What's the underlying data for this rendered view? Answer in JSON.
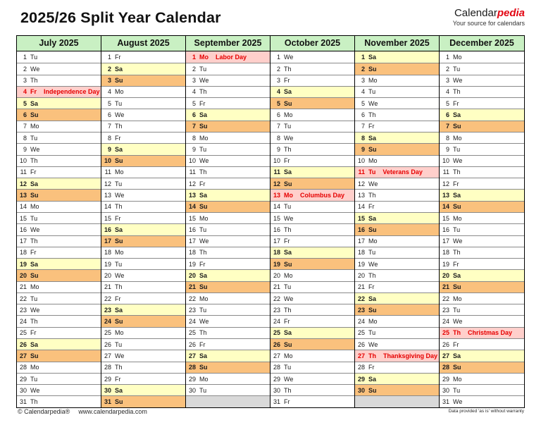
{
  "page": {
    "title": "2025/26 Split Year Calendar",
    "logo": {
      "part1": "Calendar",
      "part2": "pedia",
      "tagline": "Your source for calendars"
    },
    "footer": {
      "copyright": "© Calendarpedia®",
      "url": "www.calendarpedia.com",
      "disclaimer": "Data provided 'as is' without warranty"
    }
  },
  "colors": {
    "month-header-bg": "#c9f0c3",
    "saturday-bg": "#ffffc3",
    "sunday-bg": "#fac17d",
    "holiday-bg": "#ffcfcb",
    "holiday-text": "#e60000",
    "empty-bg": "#d9d9d9",
    "logo-red": "#e30613"
  },
  "layout": {
    "rows": 31
  },
  "months": [
    {
      "name": "July 2025",
      "weekdays": [
        "Tu",
        "We",
        "Th",
        "Fr",
        "Sa",
        "Su",
        "Mo",
        "Tu",
        "We",
        "Th",
        "Fr",
        "Sa",
        "Su",
        "Mo",
        "Tu",
        "We",
        "Th",
        "Fr",
        "Sa",
        "Su",
        "Mo",
        "Tu",
        "We",
        "Th",
        "Fr",
        "Sa",
        "Su",
        "Mo",
        "Tu",
        "We",
        "Th"
      ],
      "holidays": {
        "4": "Independence Day"
      }
    },
    {
      "name": "August 2025",
      "weekdays": [
        "Fr",
        "Sa",
        "Su",
        "Mo",
        "Tu",
        "We",
        "Th",
        "Fr",
        "Sa",
        "Su",
        "Mo",
        "Tu",
        "We",
        "Th",
        "Fr",
        "Sa",
        "Su",
        "Mo",
        "Tu",
        "We",
        "Th",
        "Fr",
        "Sa",
        "Su",
        "Mo",
        "Tu",
        "We",
        "Th",
        "Fr",
        "Sa",
        "Su"
      ],
      "holidays": {}
    },
    {
      "name": "September 2025",
      "weekdays": [
        "Mo",
        "Tu",
        "We",
        "Th",
        "Fr",
        "Sa",
        "Su",
        "Mo",
        "Tu",
        "We",
        "Th",
        "Fr",
        "Sa",
        "Su",
        "Mo",
        "Tu",
        "We",
        "Th",
        "Fr",
        "Sa",
        "Su",
        "Mo",
        "Tu",
        "We",
        "Th",
        "Fr",
        "Sa",
        "Su",
        "Mo",
        "Tu"
      ],
      "holidays": {
        "1": "Labor Day"
      }
    },
    {
      "name": "October 2025",
      "weekdays": [
        "We",
        "Th",
        "Fr",
        "Sa",
        "Su",
        "Mo",
        "Tu",
        "We",
        "Th",
        "Fr",
        "Sa",
        "Su",
        "Mo",
        "Tu",
        "We",
        "Th",
        "Fr",
        "Sa",
        "Su",
        "Mo",
        "Tu",
        "We",
        "Th",
        "Fr",
        "Sa",
        "Su",
        "Mo",
        "Tu",
        "We",
        "Th",
        "Fr"
      ],
      "holidays": {
        "13": "Columbus Day"
      }
    },
    {
      "name": "November 2025",
      "weekdays": [
        "Sa",
        "Su",
        "Mo",
        "Tu",
        "We",
        "Th",
        "Fr",
        "Sa",
        "Su",
        "Mo",
        "Tu",
        "We",
        "Th",
        "Fr",
        "Sa",
        "Su",
        "Mo",
        "Tu",
        "We",
        "Th",
        "Fr",
        "Sa",
        "Su",
        "Mo",
        "Tu",
        "We",
        "Th",
        "Fr",
        "Sa",
        "Su"
      ],
      "holidays": {
        "11": "Veterans Day",
        "27": "Thanksgiving Day"
      }
    },
    {
      "name": "December 2025",
      "weekdays": [
        "Mo",
        "Tu",
        "We",
        "Th",
        "Fr",
        "Sa",
        "Su",
        "Mo",
        "Tu",
        "We",
        "Th",
        "Fr",
        "Sa",
        "Su",
        "Mo",
        "Tu",
        "We",
        "Th",
        "Fr",
        "Sa",
        "Su",
        "Mo",
        "Tu",
        "We",
        "Th",
        "Fr",
        "Sa",
        "Su",
        "Mo",
        "Tu",
        "We"
      ],
      "holidays": {
        "25": "Christmas Day"
      }
    }
  ]
}
